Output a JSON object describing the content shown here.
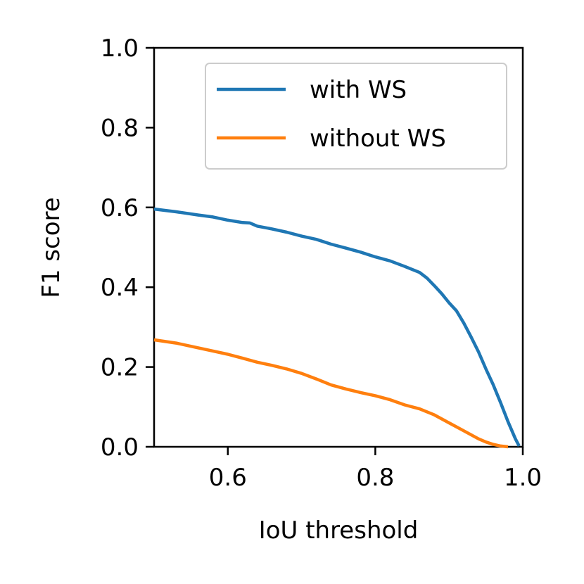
{
  "chart_data": {
    "type": "line",
    "title": "",
    "xlabel": "IoU threshold",
    "ylabel": "F1 score",
    "xlim": [
      0.5,
      1.0
    ],
    "ylim": [
      0.0,
      1.0
    ],
    "xticks": [
      "0.6",
      "0.8",
      "1.0"
    ],
    "yticks": [
      "0.0",
      "0.2",
      "0.4",
      "0.6",
      "0.8",
      "1.0"
    ],
    "grid": false,
    "legend_position": "upper-right",
    "series": [
      {
        "name": "with WS",
        "color": "#1f77b4",
        "x": [
          0.5,
          0.53,
          0.56,
          0.58,
          0.6,
          0.62,
          0.63,
          0.64,
          0.66,
          0.68,
          0.7,
          0.72,
          0.74,
          0.76,
          0.78,
          0.8,
          0.82,
          0.84,
          0.86,
          0.87,
          0.88,
          0.89,
          0.9,
          0.91,
          0.92,
          0.93,
          0.94,
          0.95,
          0.96,
          0.97,
          0.98,
          0.99,
          0.995
        ],
        "y": [
          0.596,
          0.589,
          0.581,
          0.576,
          0.568,
          0.562,
          0.561,
          0.553,
          0.546,
          0.538,
          0.528,
          0.52,
          0.508,
          0.498,
          0.488,
          0.476,
          0.466,
          0.452,
          0.437,
          0.423,
          0.404,
          0.384,
          0.361,
          0.341,
          0.31,
          0.275,
          0.238,
          0.195,
          0.155,
          0.11,
          0.063,
          0.02,
          0.002
        ]
      },
      {
        "name": "without WS",
        "color": "#ff7f0e",
        "x": [
          0.5,
          0.53,
          0.56,
          0.58,
          0.6,
          0.62,
          0.64,
          0.66,
          0.68,
          0.7,
          0.72,
          0.74,
          0.76,
          0.78,
          0.8,
          0.82,
          0.84,
          0.86,
          0.88,
          0.9,
          0.92,
          0.94,
          0.95,
          0.96,
          0.97,
          0.98
        ],
        "y": [
          0.268,
          0.26,
          0.248,
          0.24,
          0.232,
          0.222,
          0.212,
          0.204,
          0.195,
          0.184,
          0.17,
          0.155,
          0.145,
          0.136,
          0.128,
          0.118,
          0.105,
          0.095,
          0.08,
          0.06,
          0.04,
          0.02,
          0.012,
          0.006,
          0.002,
          0.0
        ]
      }
    ]
  }
}
